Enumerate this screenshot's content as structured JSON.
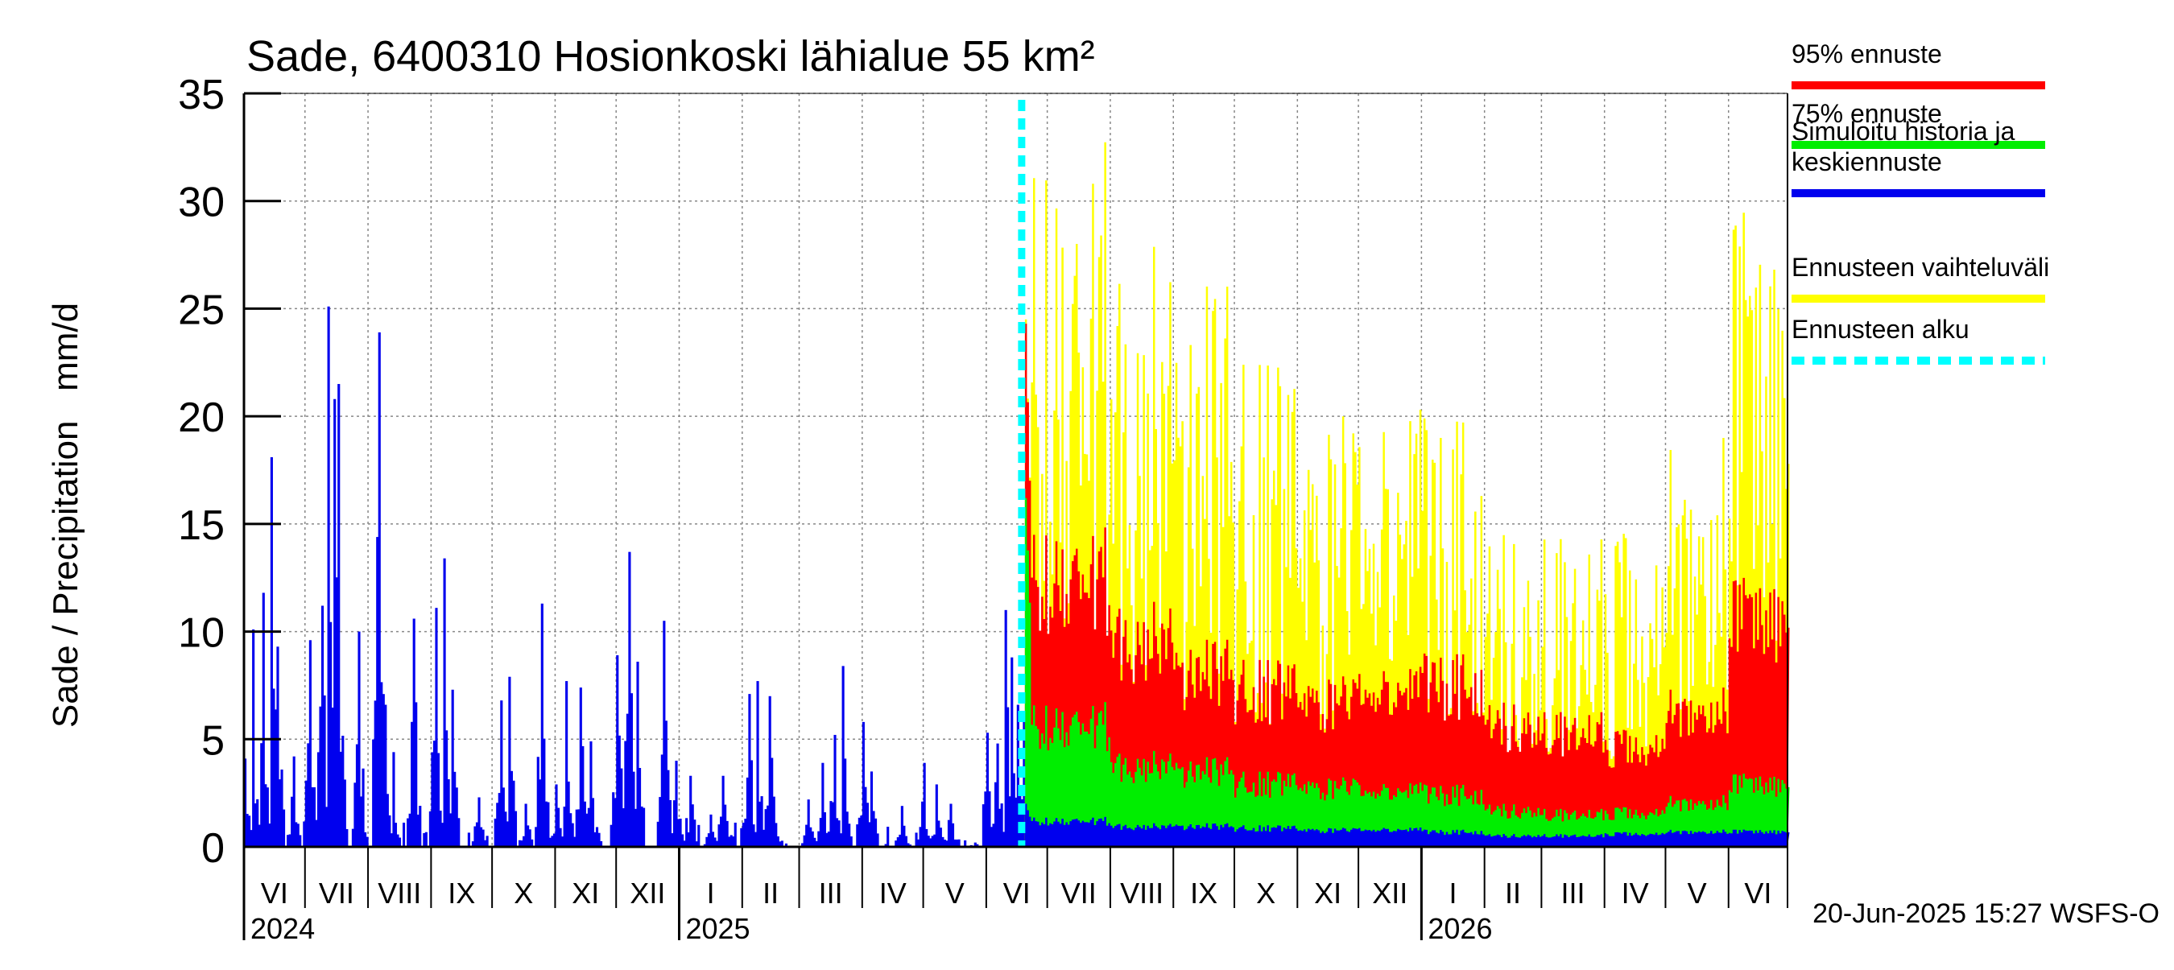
{
  "chart_data": {
    "type": "area",
    "title": "Sade, 6400310 Hosionkoski lähialue 55 km²",
    "ylabel": "Sade / Precipitation   mm/d",
    "ylim": [
      0,
      35
    ],
    "yticks": [
      0,
      5,
      10,
      15,
      20,
      25,
      30,
      35
    ],
    "grid": true,
    "legend_position": "right",
    "x_start": "2024-06-01",
    "x_end": "2026-06-30",
    "forecast_start": "2025-06-20",
    "month_labels": [
      "VI",
      "VII",
      "VIII",
      "IX",
      "X",
      "XI",
      "XII",
      "I",
      "II",
      "III",
      "IV",
      "V",
      "VI",
      "VII",
      "VIII",
      "IX",
      "X",
      "XI",
      "XII",
      "I",
      "II",
      "III",
      "IV",
      "V",
      "VI"
    ],
    "year_labels": [
      {
        "label": "2024",
        "date": "2024-06-01"
      },
      {
        "label": "2025",
        "date": "2025-01-01"
      },
      {
        "label": "2026",
        "date": "2026-01-01"
      }
    ],
    "footer": "20-Jun-2025 15:27 WSFS-O",
    "colors": {
      "p95": "#ff0000",
      "p75": "#00ee00",
      "mean": "#0000ee",
      "range": "#ffff00",
      "forecast_start": "#00ffff",
      "grid": "#888888"
    },
    "legend": [
      {
        "label": "95% ennuste",
        "color": "#ff0000",
        "style": "solid"
      },
      {
        "label": "75% ennuste",
        "color": "#00ee00",
        "style": "solid"
      },
      {
        "label": "Simuloitu historia ja\nkeskiennuste",
        "color": "#0000ee",
        "style": "solid"
      },
      {
        "label": "Ennusteen vaihteluväli",
        "color": "#ffff00",
        "style": "solid"
      },
      {
        "label": "Ennusteen alku",
        "color": "#00ffff",
        "style": "dashed"
      }
    ],
    "history_peaks": [
      {
        "date": "2024-06-01",
        "value": 4.1
      },
      {
        "date": "2024-06-05",
        "value": 10.1
      },
      {
        "date": "2024-06-10",
        "value": 11.8
      },
      {
        "date": "2024-06-14",
        "value": 18.1
      },
      {
        "date": "2024-06-17",
        "value": 9.3
      },
      {
        "date": "2024-06-25",
        "value": 4.2
      },
      {
        "date": "2024-07-03",
        "value": 9.6
      },
      {
        "date": "2024-07-09",
        "value": 11.2
      },
      {
        "date": "2024-07-12",
        "value": 25.1
      },
      {
        "date": "2024-07-15",
        "value": 20.8
      },
      {
        "date": "2024-07-17",
        "value": 21.5
      },
      {
        "date": "2024-07-27",
        "value": 10.0
      },
      {
        "date": "2024-08-06",
        "value": 23.9
      },
      {
        "date": "2024-08-09",
        "value": 6.6
      },
      {
        "date": "2024-08-13",
        "value": 4.4
      },
      {
        "date": "2024-08-23",
        "value": 10.6
      },
      {
        "date": "2024-09-03",
        "value": 11.1
      },
      {
        "date": "2024-09-07",
        "value": 13.4
      },
      {
        "date": "2024-09-11",
        "value": 7.3
      },
      {
        "date": "2024-09-24",
        "value": 2.3
      },
      {
        "date": "2024-10-05",
        "value": 6.8
      },
      {
        "date": "2024-10-09",
        "value": 7.9
      },
      {
        "date": "2024-10-17",
        "value": 2.0
      },
      {
        "date": "2024-10-25",
        "value": 11.3
      },
      {
        "date": "2024-11-01",
        "value": 2.9
      },
      {
        "date": "2024-11-06",
        "value": 7.7
      },
      {
        "date": "2024-11-13",
        "value": 7.4
      },
      {
        "date": "2024-11-18",
        "value": 4.9
      },
      {
        "date": "2024-12-01",
        "value": 8.9
      },
      {
        "date": "2024-12-07",
        "value": 13.7
      },
      {
        "date": "2024-12-11",
        "value": 8.6
      },
      {
        "date": "2024-12-24",
        "value": 10.5
      },
      {
        "date": "2024-12-30",
        "value": 4.0
      },
      {
        "date": "2025-01-06",
        "value": 3.3
      },
      {
        "date": "2025-01-16",
        "value": 1.5
      },
      {
        "date": "2025-01-22",
        "value": 3.3
      },
      {
        "date": "2025-02-04",
        "value": 7.1
      },
      {
        "date": "2025-02-08",
        "value": 7.7
      },
      {
        "date": "2025-02-14",
        "value": 7.0
      },
      {
        "date": "2025-03-05",
        "value": 2.2
      },
      {
        "date": "2025-03-12",
        "value": 3.9
      },
      {
        "date": "2025-03-18",
        "value": 5.2
      },
      {
        "date": "2025-03-22",
        "value": 8.4
      },
      {
        "date": "2025-04-01",
        "value": 5.8
      },
      {
        "date": "2025-04-05",
        "value": 3.5
      },
      {
        "date": "2025-04-20",
        "value": 1.9
      },
      {
        "date": "2025-05-01",
        "value": 3.9
      },
      {
        "date": "2025-05-07",
        "value": 2.9
      },
      {
        "date": "2025-05-14",
        "value": 2.0
      },
      {
        "date": "2025-05-26",
        "value": 0.2
      },
      {
        "date": "2025-06-01",
        "value": 5.3
      },
      {
        "date": "2025-06-06",
        "value": 4.8
      },
      {
        "date": "2025-06-10",
        "value": 11.0
      },
      {
        "date": "2025-06-13",
        "value": 8.8
      },
      {
        "date": "2025-06-16",
        "value": 6.6
      },
      {
        "date": "2025-06-19",
        "value": 6.0
      }
    ],
    "forecast_monthly": [
      {
        "month": "2025-07",
        "range_max": 33.5,
        "p95": 15.0,
        "p75": 6.8,
        "mean": 1.4
      },
      {
        "month": "2025-08",
        "range_max": 28.5,
        "p95": 11.5,
        "p75": 4.5,
        "mean": 1.1
      },
      {
        "month": "2025-09",
        "range_max": 26.5,
        "p95": 9.7,
        "p75": 4.2,
        "mean": 1.1
      },
      {
        "month": "2025-10",
        "range_max": 22.5,
        "p95": 8.7,
        "p75": 3.5,
        "mean": 1.0
      },
      {
        "month": "2025-11",
        "range_max": 21.0,
        "p95": 8.1,
        "p75": 3.3,
        "mean": 0.9
      },
      {
        "month": "2025-12",
        "range_max": 20.5,
        "p95": 8.4,
        "p75": 3.0,
        "mean": 0.9
      },
      {
        "month": "2026-01",
        "range_max": 20.0,
        "p95": 9.0,
        "p75": 2.9,
        "mean": 0.8
      },
      {
        "month": "2026-02",
        "range_max": 14.5,
        "p95": 6.7,
        "p75": 2.0,
        "mean": 0.6
      },
      {
        "month": "2026-03",
        "range_max": 15.0,
        "p95": 6.4,
        "p75": 1.8,
        "mean": 0.6
      },
      {
        "month": "2026-04",
        "range_max": 15.5,
        "p95": 5.6,
        "p75": 1.9,
        "mean": 0.7
      },
      {
        "month": "2026-05",
        "range_max": 19.0,
        "p95": 7.4,
        "p75": 2.4,
        "mean": 0.8
      },
      {
        "month": "2026-06",
        "range_max": 29.5,
        "p95": 12.5,
        "p75": 3.4,
        "mean": 0.8
      }
    ]
  }
}
